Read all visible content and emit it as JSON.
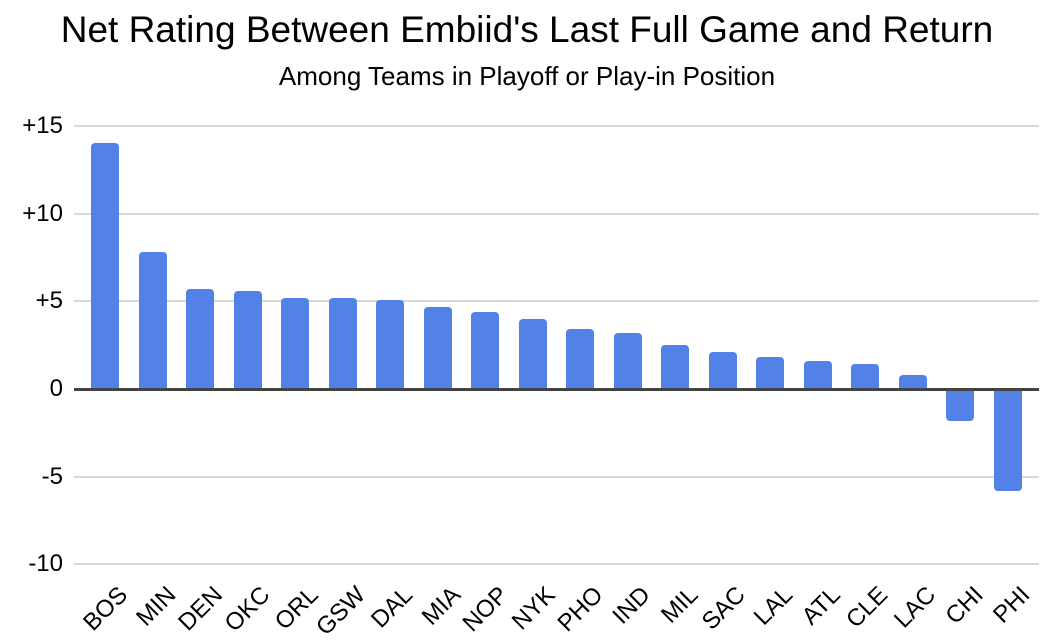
{
  "chart_data": {
    "type": "bar",
    "title": "Net Rating Between Embiid's Last Full Game and Return",
    "subtitle": "Among Teams in Playoff or Play-in Position",
    "categories": [
      "BOS",
      "MIN",
      "DEN",
      "OKC",
      "ORL",
      "GSW",
      "DAL",
      "MIA",
      "NOP",
      "NYK",
      "PHO",
      "IND",
      "MIL",
      "SAC",
      "LAL",
      "ATL",
      "CLE",
      "LAC",
      "CHI",
      "PHI"
    ],
    "values": [
      14.0,
      7.8,
      5.7,
      5.6,
      5.2,
      5.2,
      5.1,
      4.7,
      4.4,
      4.0,
      3.4,
      3.2,
      2.5,
      2.1,
      1.8,
      1.6,
      1.4,
      0.8,
      -1.8,
      -5.8
    ],
    "xlabel": "",
    "ylabel": "",
    "ylim": [
      -10,
      15
    ],
    "yticks": [
      {
        "value": 15,
        "label": "+15"
      },
      {
        "value": 10,
        "label": "+10"
      },
      {
        "value": 5,
        "label": "+5"
      },
      {
        "value": 0,
        "label": "0"
      },
      {
        "value": -5,
        "label": "-5"
      },
      {
        "value": -10,
        "label": "-10"
      }
    ],
    "grid": true,
    "legend": "none",
    "colors": {
      "bar": "#5282e8",
      "gridline": "#d9d9d9",
      "zero_line": "#424242",
      "text": "#000000",
      "background": "#ffffff"
    }
  }
}
